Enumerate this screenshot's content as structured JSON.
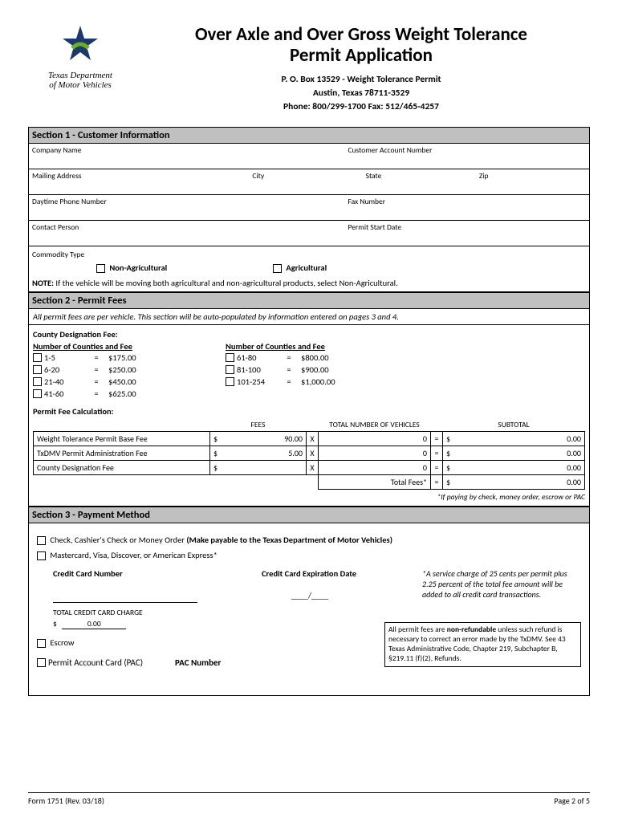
{
  "logo": {
    "line1": "Texas Department",
    "line2": "of Motor Vehicles",
    "colors": {
      "blue": "#1b3a6b",
      "green": "#6ab023"
    }
  },
  "title": {
    "line1": "Over Axle and Over Gross Weight Tolerance",
    "line2": "Permit Application"
  },
  "address": {
    "l1": "P. O. Box 13529 - Weight Tolerance Permit",
    "l2": "Austin, Texas 78711-3529",
    "l3": "Phone: 800/299-1700  Fax: 512/465-4257"
  },
  "section1": {
    "header": "Section 1 - Customer Information",
    "company": "Company Name",
    "account": "Customer Account Number",
    "mailing": "Mailing Address",
    "city": "City",
    "state": "State",
    "zip": "Zip",
    "phone": "Daytime Phone Number",
    "fax": "Fax Number",
    "contact": "Contact Person",
    "permit_start": "Permit Start Date",
    "commodity": "Commodity Type",
    "nonag": "Non-Agricultural",
    "ag": "Agricultural",
    "note_label": "NOTE:",
    "note_text": "If the vehicle will be moving both agricultural and non-agricultural products, select Non-Agricultural."
  },
  "section2": {
    "header": "Section 2 - Permit Fees",
    "italic": "All permit fees are per vehicle. This section will be auto-populated by information entered on pages 3 and 4.",
    "county_fee": "County Designation Fee:",
    "num_counties": "Number of Counties and Fee",
    "left": [
      {
        "r": "1-5",
        "f": "$175.00"
      },
      {
        "r": "6-20",
        "f": "$250.00"
      },
      {
        "r": "21-40",
        "f": "$450.00"
      },
      {
        "r": "41-60",
        "f": "$625.00"
      }
    ],
    "right": [
      {
        "r": "61-80",
        "f": "$800.00"
      },
      {
        "r": "81-100",
        "f": "$900.00"
      },
      {
        "r": "101-254",
        "f": "$1,000.00"
      }
    ],
    "calc_title": "Permit Fee Calculation:",
    "h_fees": "FEES",
    "h_vehicles": "TOTAL NUMBER OF VEHICLES",
    "h_subtotal": "SUBTOTAL",
    "rows": [
      {
        "label": "Weight Tolerance Permit Base Fee",
        "fee": "90.00",
        "veh": "0",
        "sub": "0.00"
      },
      {
        "label": "TxDMV Permit Administration Fee",
        "fee": "5.00",
        "veh": "0",
        "sub": "0.00"
      },
      {
        "label": "County Designation Fee",
        "fee": "",
        "veh": "0",
        "sub": "0.00"
      }
    ],
    "total_label": "Total Fees*",
    "total_val": "0.00",
    "foot": "*If paying by check, money order, escrow or PAC"
  },
  "section3": {
    "header": "Section 3 - Payment Method",
    "check": "Check, Cashier's Check or Money Order",
    "check_bold": "(Make payable to the Texas Department of Motor Vehicles)",
    "card": "Mastercard, Visa, Discover, or American Express*",
    "cc_num": "Credit Card Number",
    "cc_exp": "Credit Card Expiration Date",
    "cc_date": "____/____",
    "note": "*A service charge of 25 cents per permit plus 2.25 percent of the total fee amount will be added to all credit card transactions.",
    "tcc": "TOTAL CREDIT CARD CHARGE",
    "tcc_amt": "0.00",
    "escrow": "Escrow",
    "pac": "Permit Account Card (PAC)",
    "pac_num": "PAC Number",
    "refund": "All permit fees are <b>non-refundable</b> unless such refund is necessary to correct an error made by the TxDMV. See 43 Texas Administrative Code,  Chapter 219, Subchapter B, §219.11 (f)(2), Refunds."
  },
  "footer": {
    "left": "Form 1751 (Rev. 03/18)",
    "right": "Page 2 of 5"
  }
}
